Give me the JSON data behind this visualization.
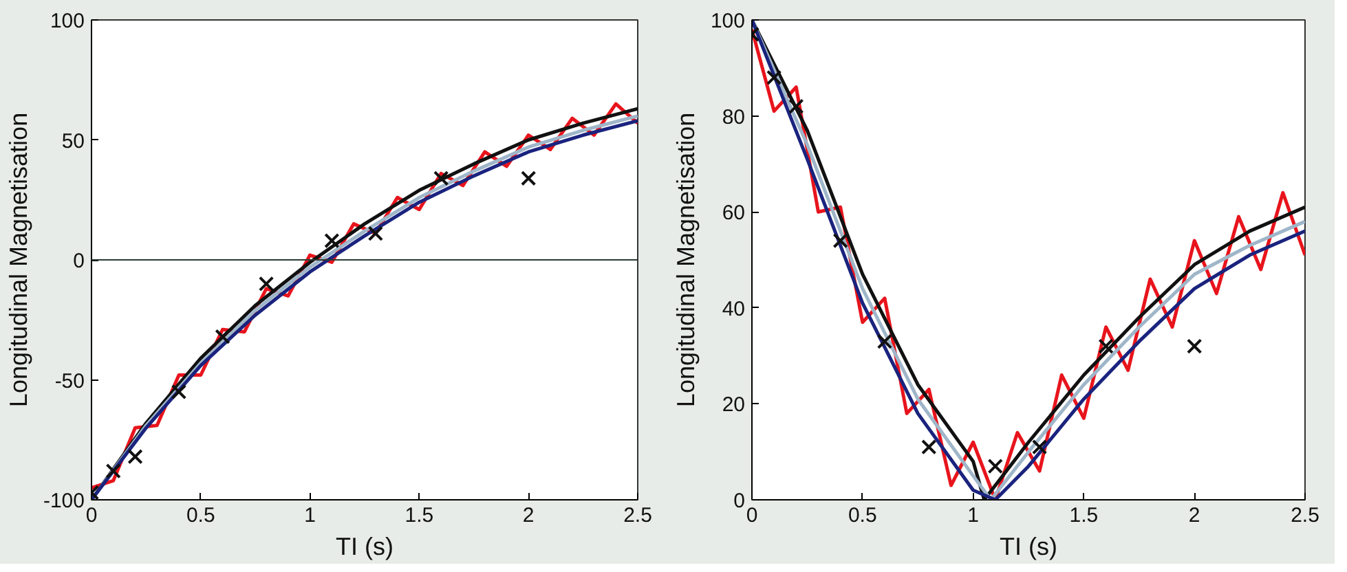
{
  "chart_data": [
    {
      "type": "line",
      "xlabel": "TI (s)",
      "ylabel": "Longitudinal Magnetisation",
      "xlim": [
        0,
        2.5
      ],
      "ylim": [
        -100,
        100
      ],
      "xticks": [
        0,
        0.5,
        1,
        1.5,
        2,
        2.5
      ],
      "yticks": [
        -100,
        -50,
        0,
        50,
        100
      ],
      "grid": false,
      "ref_lines": [
        {
          "axis": "y",
          "value": 0,
          "color": "#2a3a32"
        }
      ],
      "series": [
        {
          "color": "#e8141c",
          "x": [
            0,
            0.1,
            0.2,
            0.3,
            0.4,
            0.5,
            0.6,
            0.7,
            0.8,
            0.9,
            1.0,
            1.1,
            1.2,
            1.3,
            1.4,
            1.5,
            1.6,
            1.7,
            1.8,
            1.9,
            2.0,
            2.1,
            2.2,
            2.3,
            2.4,
            2.5
          ],
          "values": [
            -95,
            -92,
            -70,
            -69,
            -48,
            -48,
            -29,
            -30,
            -12,
            -15,
            2,
            -1,
            15,
            11,
            26,
            21,
            36,
            31,
            45,
            39,
            52,
            46,
            59,
            52,
            65,
            57
          ]
        },
        {
          "color": "#111111",
          "x": [
            0,
            0.25,
            0.5,
            0.75,
            1.0,
            1.25,
            1.5,
            1.75,
            2.0,
            2.25,
            2.5
          ],
          "values": [
            -100,
            -68,
            -41,
            -19,
            -1,
            15,
            29,
            40,
            50,
            57,
            63
          ]
        },
        {
          "color": "#9fb6c9",
          "x": [
            0,
            0.25,
            0.5,
            0.75,
            1.0,
            1.25,
            1.5,
            1.75,
            2.0,
            2.25,
            2.5
          ],
          "values": [
            -100,
            -69,
            -43,
            -21,
            -3,
            12,
            26,
            37,
            47,
            54,
            60
          ]
        },
        {
          "color": "#1a237e",
          "x": [
            0,
            0.25,
            0.5,
            0.75,
            1.0,
            1.25,
            1.5,
            1.75,
            2.0,
            2.25,
            2.5
          ],
          "values": [
            -100,
            -70,
            -44,
            -23,
            -5,
            10,
            24,
            35,
            45,
            52,
            58
          ]
        },
        {
          "type": "scatter",
          "marker": "cross",
          "color": "#111111",
          "x": [
            0,
            0.1,
            0.2,
            0.4,
            0.6,
            0.8,
            1.1,
            1.3,
            1.6,
            2.0
          ],
          "values": [
            -97,
            -88,
            -82,
            -55,
            -32,
            -10,
            8,
            11,
            34,
            34
          ]
        }
      ]
    },
    {
      "type": "line",
      "xlabel": "TI (s)",
      "ylabel": "Longitudinal Magnetisation",
      "xlim": [
        0,
        2.5
      ],
      "ylim": [
        0,
        100
      ],
      "xticks": [
        0,
        0.5,
        1,
        1.5,
        2,
        2.5
      ],
      "yticks": [
        0,
        20,
        40,
        60,
        80,
        100
      ],
      "grid": false,
      "series": [
        {
          "color": "#e8141c",
          "x": [
            0,
            0.1,
            0.2,
            0.3,
            0.4,
            0.5,
            0.6,
            0.7,
            0.8,
            0.9,
            1.0,
            1.1,
            1.2,
            1.3,
            1.4,
            1.5,
            1.6,
            1.7,
            1.8,
            1.9,
            2.0,
            2.1,
            2.2,
            2.3,
            2.4,
            2.5
          ],
          "values": [
            98,
            81,
            86,
            60,
            61,
            37,
            42,
            18,
            23,
            3,
            12,
            0,
            14,
            6,
            26,
            17,
            36,
            27,
            46,
            36,
            54,
            43,
            59,
            48,
            64,
            51
          ]
        },
        {
          "color": "#111111",
          "x": [
            0,
            0.25,
            0.5,
            0.75,
            1.0,
            1.05,
            1.25,
            1.5,
            1.75,
            2.0,
            2.25,
            2.5
          ],
          "values": [
            100,
            77,
            47,
            24,
            8,
            0,
            12,
            26,
            38,
            49,
            56,
            61
          ]
        },
        {
          "color": "#9fb6c9",
          "x": [
            0,
            0.25,
            0.5,
            0.75,
            1.0,
            1.08,
            1.25,
            1.5,
            1.75,
            2.0,
            2.25,
            2.5
          ],
          "values": [
            100,
            74,
            44,
            21,
            5,
            0,
            10,
            24,
            36,
            47,
            53,
            58
          ]
        },
        {
          "color": "#1a237e",
          "x": [
            0,
            0.25,
            0.5,
            0.75,
            1.0,
            1.1,
            1.25,
            1.5,
            1.75,
            2.0,
            2.25,
            2.5
          ],
          "values": [
            100,
            71,
            41,
            18,
            2,
            0,
            7,
            21,
            33,
            44,
            51,
            56
          ]
        },
        {
          "type": "scatter",
          "marker": "cross",
          "color": "#111111",
          "x": [
            0,
            0.1,
            0.2,
            0.4,
            0.6,
            0.8,
            1.1,
            1.3,
            1.6,
            2.0
          ],
          "values": [
            97,
            88,
            82,
            54,
            33,
            11,
            7,
            11,
            32,
            32
          ]
        }
      ]
    }
  ]
}
